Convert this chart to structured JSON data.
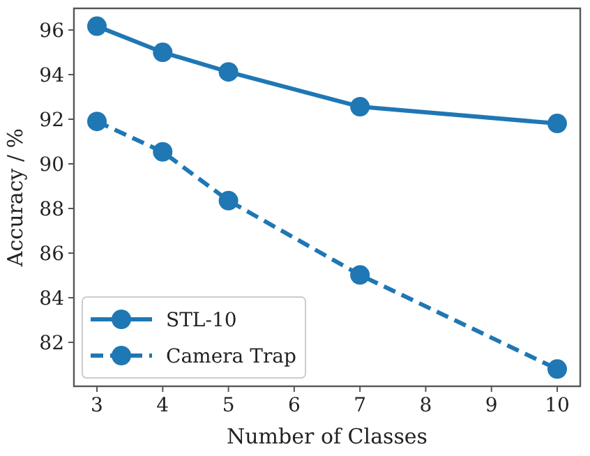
{
  "chart_data": {
    "type": "line",
    "xlabel": "Number of Classes",
    "ylabel": "Accuracy / %",
    "xlim": [
      2.65,
      10.35
    ],
    "xticks": [
      3,
      4,
      5,
      6,
      7,
      8,
      9,
      10
    ],
    "ylim": [
      80.03,
      96.97
    ],
    "yticks": [
      82,
      84,
      86,
      88,
      90,
      92,
      94,
      96
    ],
    "grid": false,
    "legend": "bottom left",
    "marker": "circle",
    "series": [
      {
        "name": "STL-10",
        "color": "#1f77b4",
        "line_style": "solid",
        "x": [
          3,
          4,
          5,
          7,
          10
        ],
        "values": [
          96.17,
          95.0,
          94.12,
          92.56,
          91.81
        ]
      },
      {
        "name": "Camera Trap",
        "color": "#1f77b4",
        "line_style": "dashed",
        "x": [
          3,
          4,
          5,
          7,
          10
        ],
        "values": [
          91.9,
          90.54,
          88.35,
          85.02,
          80.8
        ]
      }
    ]
  }
}
